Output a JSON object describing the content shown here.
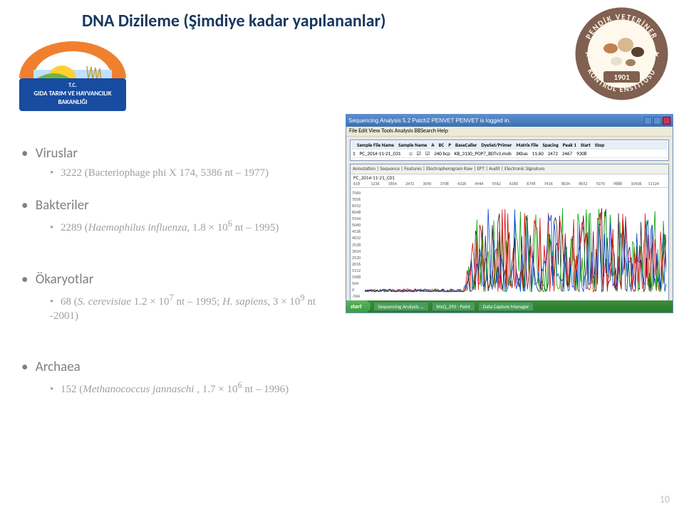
{
  "title": "DNA Dizileme (Şimdiye kadar yapılananlar)",
  "logos": {
    "left_text_top": "T.C.",
    "left_text_mid": "GIDA TARIM VE HAYVANCILIK",
    "left_text_bot": "BAKANLIĞI",
    "right_text_top": "PENDİK VETERİNER",
    "right_text_bot": "KONTROL ENSTİTÜSÜ",
    "right_year": "1901"
  },
  "sections": [
    {
      "heading": "Viruslar",
      "sub": "3222 (Bacteriophage phi X 174, 5386 nt – 1977)"
    },
    {
      "heading": "Bakteriler",
      "sub": "2289 (<i>Haemophilus influenza</i>, 1.8 × 10<sup>6</sup> nt – 1995)"
    },
    {
      "heading": "Ökaryotlar",
      "sub": "68 (<i>S. cerevisiae</i> 1.2 × 10<sup>7</sup> nt – 1995; <i>H. sapiens</i>, 3 × 10<sup>9</sup> nt -2001)"
    },
    {
      "heading": "Archaea",
      "sub": "152 (<i>Methanococcus jannaschi</i> , 1.7 × 10<sup>6</sup> nt – 1996)"
    }
  ],
  "screenshot": {
    "window_title": "Sequencing Analysis 5.2 Patch2    PENVET PENVET is logged in.",
    "menu": "File  Edit  View  Tools  Analysis  BBSearch  Help",
    "table_columns": [
      "",
      "Sample File Name",
      "Sample Name",
      "A",
      "BC",
      "P",
      "BaseCaller",
      "DyeSet/Primer",
      "Matrix File",
      "Spacing",
      "Peak 1",
      "Start",
      "Stop"
    ],
    "table_row": [
      "1",
      "PC_2014-11-21_C01",
      "",
      "□",
      "☑",
      "☑",
      "240 bcp",
      "KB_3130_POP7_BDTv3.mob",
      "3Kbas",
      "11.60",
      "2472",
      "2467",
      "9308"
    ],
    "lower_tabs": "Annotation | Sequence | Features | Electropherogram  Raw | EPT | Audit | Electronic Signature",
    "lower_label": "PC_2014-11-21_C01",
    "ruler_ticks": [
      "618",
      "1236",
      "1854",
      "2472",
      "3090",
      "3708",
      "4326",
      "4944",
      "5562",
      "6180",
      "6798",
      "7416",
      "8034",
      "8652",
      "9270",
      "9888",
      "10506",
      "11124"
    ],
    "y_ticks": [
      "7560",
      "7056",
      "6552",
      "6048",
      "5544",
      "5040",
      "4536",
      "4032",
      "3528",
      "3024",
      "2520",
      "2016",
      "1512",
      "1008",
      "504",
      "0",
      "-504"
    ],
    "trace_colors": {
      "A": "#00a000",
      "C": "#0040d0",
      "G": "#202020",
      "T": "#e00000"
    },
    "taskbar_tasks": [
      "Sequencing Analysis ...",
      "btsQ_292 - Paint",
      "Data Capture Manager"
    ],
    "start_label": "start"
  },
  "page_number": "10",
  "colors": {
    "title": "#17375e",
    "heading": "#808080",
    "sub": "#a0a0a0",
    "left_logo_crescent": "#f08030",
    "left_logo_sun": "#ffd030",
    "right_logo_ring": "#806050",
    "right_logo_inner": "#fff8ec"
  }
}
